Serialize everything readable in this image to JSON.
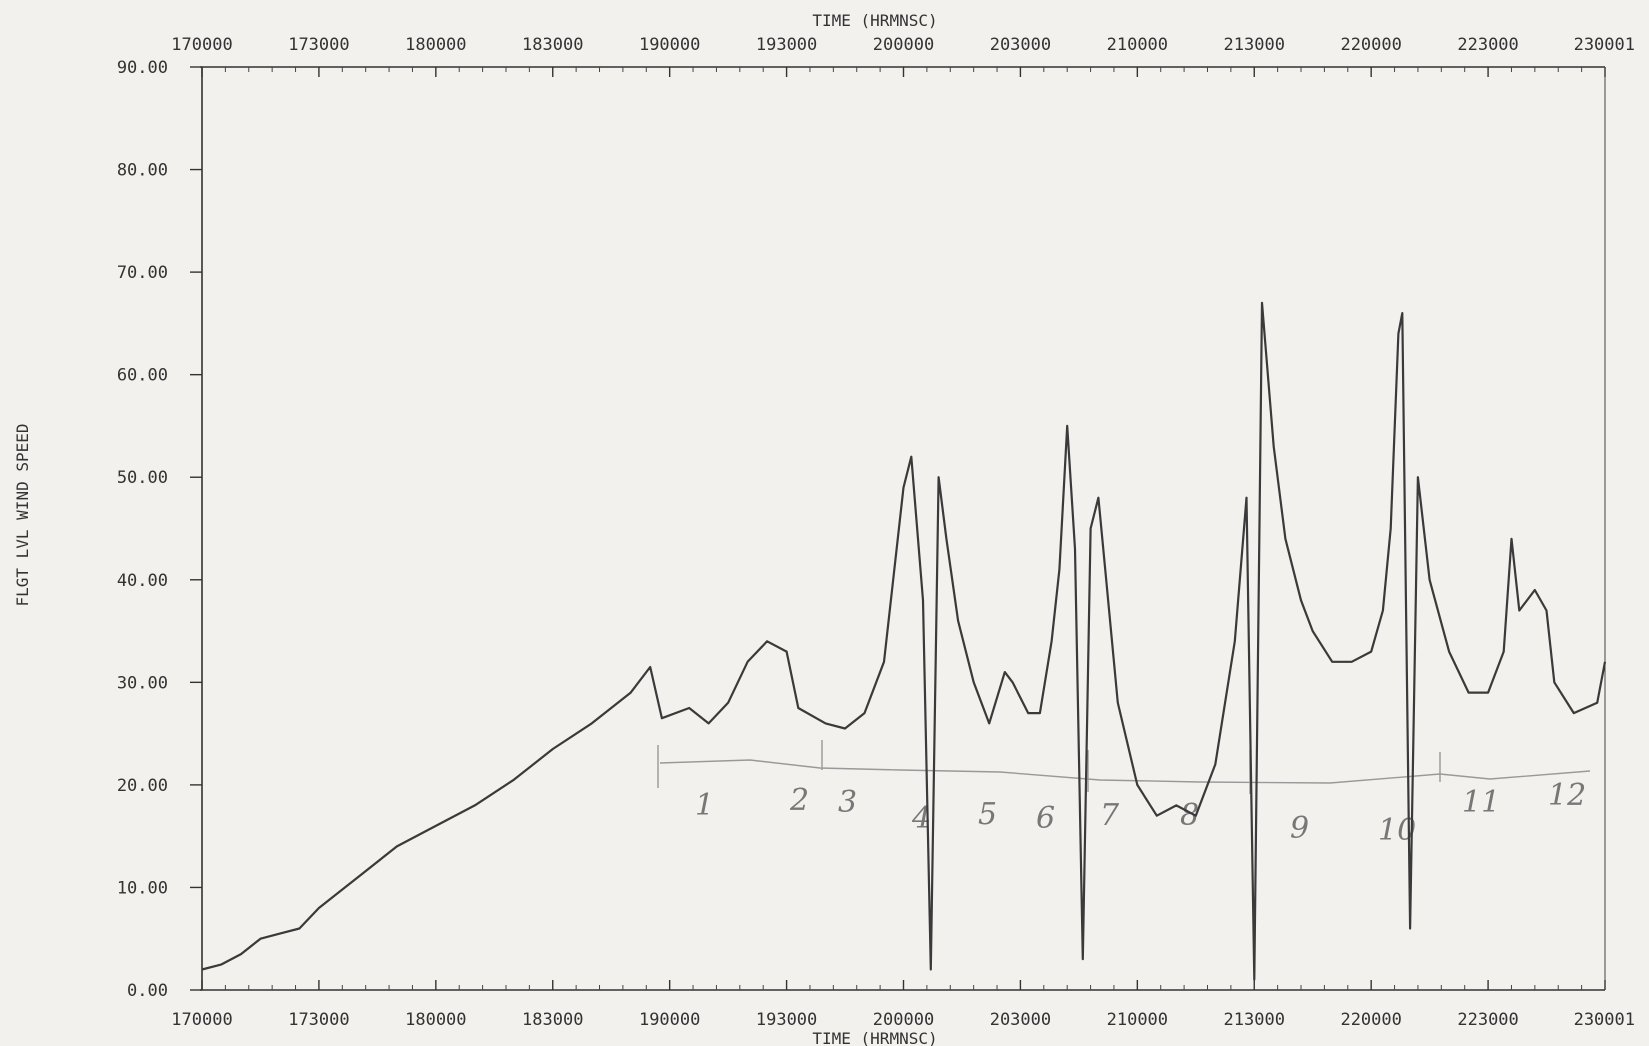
{
  "chart_data": {
    "type": "line",
    "title": "",
    "xlabel": "TIME (HRMNSC)",
    "ylabel": "FLGT LVL WIND SPEED",
    "x_ticks": [
      "170000",
      "173000",
      "180000",
      "183000",
      "190000",
      "193000",
      "200000",
      "203000",
      "210000",
      "213000",
      "220000",
      "223000",
      "230001"
    ],
    "y_ticks": [
      "0.00",
      "10.00",
      "20.00",
      "30.00",
      "40.00",
      "50.00",
      "60.00",
      "70.00",
      "80.00",
      "90.00"
    ],
    "ylim": [
      0,
      90
    ],
    "xlim": [
      "17:00:00",
      "23:00:00"
    ],
    "grid": false,
    "series": [
      {
        "name": "",
        "points": [
          [
            "17:00:00",
            2
          ],
          [
            "17:05:00",
            2.5
          ],
          [
            "17:10:00",
            3.5
          ],
          [
            "17:15:00",
            5
          ],
          [
            "17:20:00",
            5.5
          ],
          [
            "17:25:00",
            6
          ],
          [
            "17:30:00",
            8
          ],
          [
            "17:40:00",
            11
          ],
          [
            "17:50:00",
            14
          ],
          [
            "18:00:00",
            16
          ],
          [
            "18:10:00",
            18
          ],
          [
            "18:20:00",
            20.5
          ],
          [
            "18:30:00",
            23.5
          ],
          [
            "18:40:00",
            26
          ],
          [
            "18:50:00",
            29
          ],
          [
            "18:55:00",
            31.5
          ],
          [
            "18:58:00",
            26.5
          ],
          [
            "19:05:00",
            27.5
          ],
          [
            "19:10:00",
            26
          ],
          [
            "19:15:00",
            28
          ],
          [
            "19:20:00",
            32
          ],
          [
            "19:25:00",
            34
          ],
          [
            "19:30:00",
            33
          ],
          [
            "19:33:00",
            27.5
          ],
          [
            "19:40:00",
            26
          ],
          [
            "19:45:00",
            25.5
          ],
          [
            "19:50:00",
            27
          ],
          [
            "19:55:00",
            32
          ],
          [
            "20:00:00",
            49
          ],
          [
            "20:02:00",
            52
          ],
          [
            "20:05:00",
            38
          ],
          [
            "20:07:00",
            2
          ],
          [
            "20:09:00",
            50
          ],
          [
            "20:11:00",
            44
          ],
          [
            "20:14:00",
            36
          ],
          [
            "20:18:00",
            30
          ],
          [
            "20:22:00",
            26
          ],
          [
            "20:26:00",
            31
          ],
          [
            "20:28:00",
            30
          ],
          [
            "20:32:00",
            27
          ],
          [
            "20:35:00",
            27
          ],
          [
            "20:38:00",
            34
          ],
          [
            "20:40:00",
            41
          ],
          [
            "20:42:00",
            55
          ],
          [
            "20:44:00",
            43
          ],
          [
            "20:46:00",
            3
          ],
          [
            "20:48:00",
            45
          ],
          [
            "20:50:00",
            48
          ],
          [
            "20:52:00",
            40
          ],
          [
            "20:55:00",
            28
          ],
          [
            "21:00:00",
            20
          ],
          [
            "21:05:00",
            17
          ],
          [
            "21:10:00",
            18
          ],
          [
            "21:15:00",
            17
          ],
          [
            "21:20:00",
            22
          ],
          [
            "21:25:00",
            34
          ],
          [
            "21:28:00",
            48
          ],
          [
            "21:30:00",
            1
          ],
          [
            "21:32:00",
            67
          ],
          [
            "21:35:00",
            53
          ],
          [
            "21:38:00",
            44
          ],
          [
            "21:42:00",
            38
          ],
          [
            "21:45:00",
            35
          ],
          [
            "21:50:00",
            32
          ],
          [
            "21:55:00",
            32
          ],
          [
            "22:00:00",
            33
          ],
          [
            "22:03:00",
            37
          ],
          [
            "22:05:00",
            45
          ],
          [
            "22:07:00",
            64
          ],
          [
            "22:08:00",
            66
          ],
          [
            "22:10:00",
            6
          ],
          [
            "22:12:00",
            50
          ],
          [
            "22:15:00",
            40
          ],
          [
            "22:20:00",
            33
          ],
          [
            "22:25:00",
            29
          ],
          [
            "22:30:00",
            29
          ],
          [
            "22:34:00",
            33
          ],
          [
            "22:36:00",
            44
          ],
          [
            "22:38:00",
            37
          ],
          [
            "22:42:00",
            39
          ],
          [
            "22:45:00",
            37
          ],
          [
            "22:47:00",
            30
          ],
          [
            "22:52:00",
            27
          ],
          [
            "22:58:00",
            28
          ],
          [
            "23:00:00",
            32
          ]
        ]
      }
    ],
    "annotations": [
      "1",
      "2",
      "3",
      "4",
      "5",
      "6",
      "7",
      "8",
      "9",
      "10",
      "11",
      "12"
    ]
  }
}
